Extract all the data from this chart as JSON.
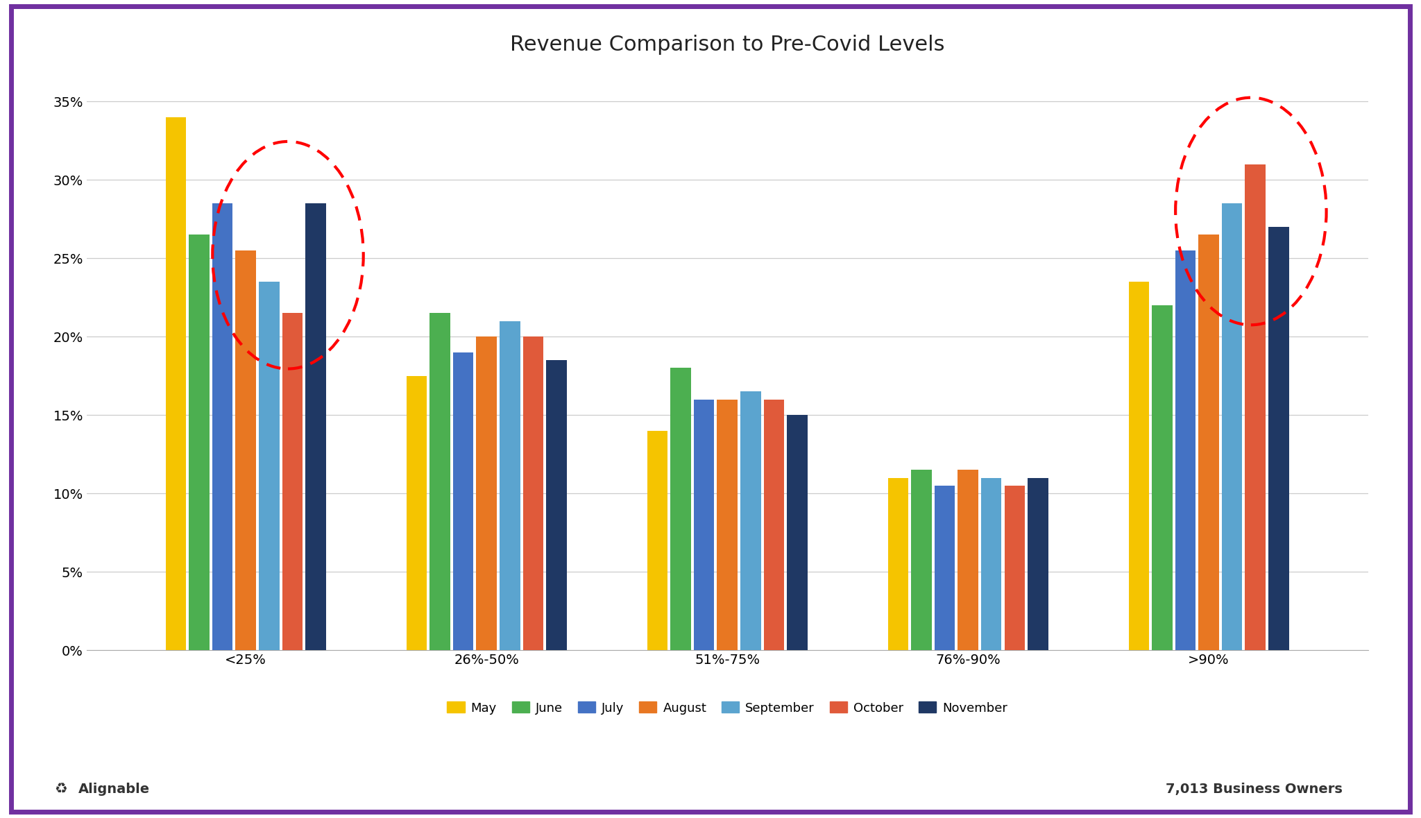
{
  "title": "Revenue Comparison to Pre-Covid Levels",
  "categories": [
    "<25%",
    "26%-50%",
    "51%-75%",
    "76%-90%",
    ">90%"
  ],
  "months": [
    "May",
    "June",
    "July",
    "August",
    "September",
    "October",
    "November"
  ],
  "colors": [
    "#F5C400",
    "#4CAF50",
    "#4472C4",
    "#E87722",
    "#5BA4CF",
    "#E05A3A",
    "#1F3864"
  ],
  "values": {
    "<25%": [
      34.0,
      26.5,
      28.5,
      25.5,
      23.5,
      21.5,
      28.5
    ],
    "26%-50%": [
      17.5,
      21.5,
      19.0,
      20.0,
      21.0,
      20.0,
      18.5
    ],
    "51%-75%": [
      14.0,
      18.0,
      16.0,
      16.0,
      16.5,
      16.0,
      15.0
    ],
    "76%-90%": [
      11.0,
      11.5,
      10.5,
      11.5,
      11.0,
      10.5,
      11.0
    ],
    ">90%": [
      23.5,
      22.0,
      25.5,
      26.5,
      28.5,
      31.0,
      27.0
    ]
  },
  "ylim": [
    0,
    37
  ],
  "yticks": [
    0,
    5,
    10,
    15,
    20,
    25,
    30,
    35
  ],
  "ytick_labels": [
    "0%",
    "5%",
    "10%",
    "15%",
    "20%",
    "25%",
    "30%",
    "35%"
  ],
  "footer_left": "Alignable",
  "footer_right": "7,013 Business Owners",
  "background_color": "#FFFFFF",
  "border_color": "#7030A0",
  "grid_color": "#CCCCCC",
  "title_fontsize": 22,
  "legend_fontsize": 13,
  "tick_fontsize": 14,
  "axis_label_fontsize": 14
}
